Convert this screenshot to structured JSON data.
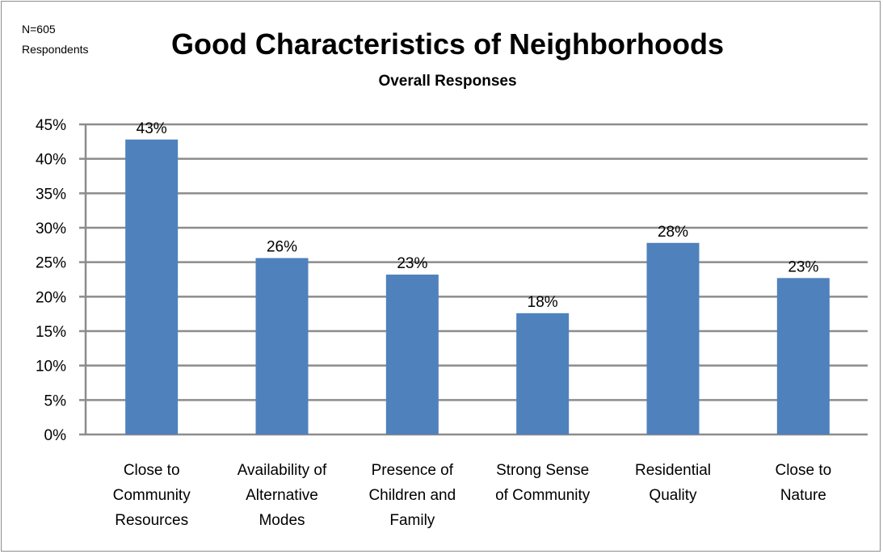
{
  "note": {
    "line1": "N=605",
    "line2": "Respondents"
  },
  "chart_data": {
    "type": "bar",
    "title": "Good Characteristics of Neighborhoods",
    "subtitle": "Overall Responses",
    "categories": [
      [
        "Close to",
        "Community",
        "Resources"
      ],
      [
        "Availability of",
        "Alternative",
        "Modes"
      ],
      [
        "Presence of",
        "Children and",
        "Family"
      ],
      [
        "Strong Sense",
        "of Community"
      ],
      [
        "Residential",
        "Quality"
      ],
      [
        "Close to",
        "Nature"
      ]
    ],
    "values": [
      42.8,
      25.6,
      23.2,
      17.6,
      27.8,
      22.7
    ],
    "data_labels": [
      "43%",
      "26%",
      "23%",
      "18%",
      "28%",
      "23%"
    ],
    "yticks": [
      "0%",
      "5%",
      "10%",
      "15%",
      "20%",
      "25%",
      "30%",
      "35%",
      "40%",
      "45%"
    ],
    "ylim": [
      0,
      45
    ],
    "ytick_step": 5,
    "grid": true,
    "legend": "none",
    "colors": {
      "bar": "#4f81bd",
      "grid": "#8c8c8c",
      "text": "#000000"
    }
  }
}
